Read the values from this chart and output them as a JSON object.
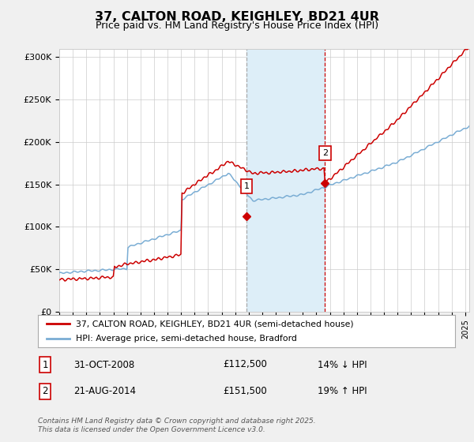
{
  "title": "37, CALTON ROAD, KEIGHLEY, BD21 4UR",
  "subtitle": "Price paid vs. HM Land Registry's House Price Index (HPI)",
  "ylabel_ticks": [
    "£0",
    "£50K",
    "£100K",
    "£150K",
    "£200K",
    "£250K",
    "£300K"
  ],
  "ytick_vals": [
    0,
    50000,
    100000,
    150000,
    200000,
    250000,
    300000
  ],
  "ylim": [
    0,
    310000
  ],
  "xlim_start": 1995,
  "xlim_end": 2025.3,
  "sale1_date": 2008.83,
  "sale1_price": 112500,
  "sale1_label": "1",
  "sale2_date": 2014.64,
  "sale2_price": 151500,
  "sale2_label": "2",
  "red_line_color": "#cc0000",
  "blue_line_color": "#7aadd4",
  "shade_color": "#ddeef8",
  "vline1_color": "#888888",
  "vline2_color": "#cc0000",
  "legend1_label": "37, CALTON ROAD, KEIGHLEY, BD21 4UR (semi-detached house)",
  "legend2_label": "HPI: Average price, semi-detached house, Bradford",
  "table_row1": [
    "1",
    "31-OCT-2008",
    "£112,500",
    "14% ↓ HPI"
  ],
  "table_row2": [
    "2",
    "21-AUG-2014",
    "£151,500",
    "19% ↑ HPI"
  ],
  "footer": "Contains HM Land Registry data © Crown copyright and database right 2025.\nThis data is licensed under the Open Government Licence v3.0.",
  "background_color": "#f0f0f0",
  "plot_bg_color": "#ffffff"
}
